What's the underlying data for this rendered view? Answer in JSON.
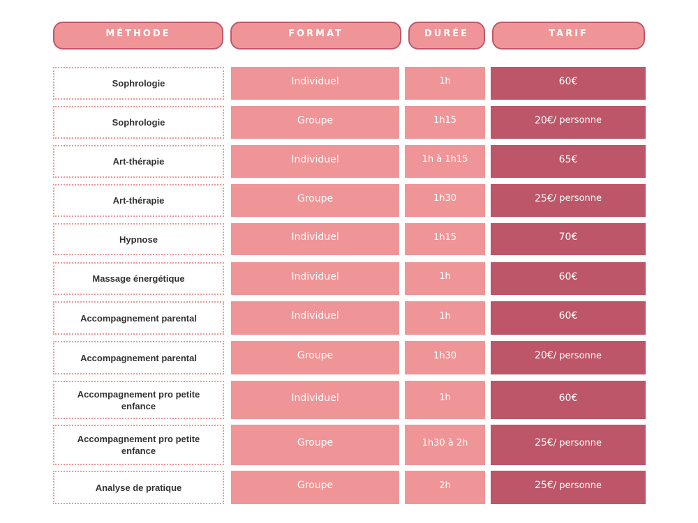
{
  "colors": {
    "pink": "#f09597",
    "rose_dark": "#bd5668",
    "header_border": "#c1576a",
    "text_dark": "#333333",
    "text_light": "#ffffff"
  },
  "header": {
    "methode": "MÉTHODE",
    "format": "FORMAT",
    "duree": "DURÉE",
    "tarif": "TARIF"
  },
  "rows": [
    {
      "methode": "Sophrologie",
      "format": "Individuel",
      "duree": "1h",
      "tarif": "60€",
      "unit": ""
    },
    {
      "methode": "Sophrologie",
      "format": "Groupe",
      "duree": "1h15",
      "tarif": "20€",
      "unit": " / personne"
    },
    {
      "methode": "Art-thérapie",
      "format": "Individuel",
      "duree": "1h à 1h15",
      "tarif": "65€",
      "unit": ""
    },
    {
      "methode": "Art-thérapie",
      "format": "Groupe",
      "duree": "1h30",
      "tarif": "25€",
      "unit": " / personne"
    },
    {
      "methode": "Hypnose",
      "format": "Individuel",
      "duree": "1h15",
      "tarif": "70€",
      "unit": ""
    },
    {
      "methode": "Massage énergétique",
      "format": "Individuel",
      "duree": "1h",
      "tarif": "60€",
      "unit": ""
    },
    {
      "methode": "Accompagnement parental",
      "format": "Individuel",
      "duree": "1h",
      "tarif": "60€",
      "unit": ""
    },
    {
      "methode": "Accompagnement parental",
      "format": "Groupe",
      "duree": "1h30",
      "tarif": "20€",
      "unit": " / personne"
    },
    {
      "methode": "Accompagnement pro petite enfance",
      "format": "Individuel",
      "duree": "1h",
      "tarif": "60€",
      "unit": ""
    },
    {
      "methode": "Accompagnement pro petite enfance",
      "format": "Groupe",
      "duree": "1h30 à 2h",
      "tarif": "25€",
      "unit": " / personne"
    },
    {
      "methode": "Analyse de pratique",
      "format": "Groupe",
      "duree": "2h",
      "tarif": "25€",
      "unit": " / personne"
    }
  ]
}
